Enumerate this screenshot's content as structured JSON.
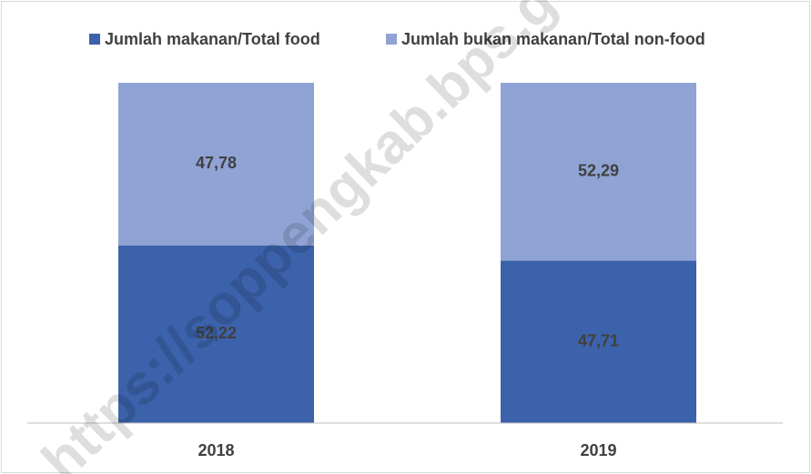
{
  "chart_data": {
    "type": "stacked_bar",
    "categories": [
      "2018",
      "2019"
    ],
    "series": [
      {
        "name": "Jumlah makanan/Total food",
        "color": "#3b62ab",
        "values": [
          52.22,
          47.71
        ],
        "value_labels": [
          "52,22",
          "47,71"
        ]
      },
      {
        "name": "Jumlah bukan makanan/Total non-food",
        "color": "#8fa3d4",
        "values": [
          47.78,
          52.29
        ],
        "value_labels": [
          "47,78",
          "52,29"
        ]
      }
    ],
    "ylim": [
      0,
      100
    ],
    "legend": "top",
    "watermark": "https://soppengkab.bps.go.id"
  }
}
